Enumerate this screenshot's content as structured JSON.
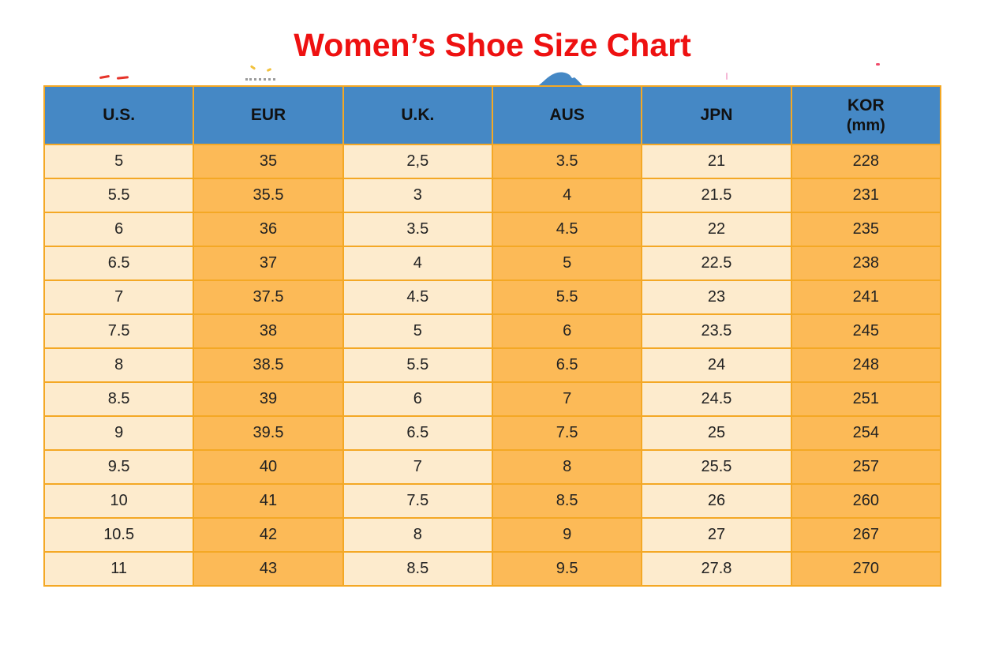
{
  "title": {
    "text": "Women’s Shoe Size Chart"
  },
  "colors": {
    "title_red": "#ee1111",
    "header_bg": "#4588c5",
    "border": "#f4a825",
    "col_light": "#fdebcd",
    "col_orange": "#fcba57",
    "cell_text": "#222222",
    "header_text": "#111111"
  },
  "chart_data": {
    "type": "table",
    "title": "Women’s Shoe Size Chart",
    "columns": [
      {
        "label": "U.S.",
        "sublabel": ""
      },
      {
        "label": "EUR",
        "sublabel": ""
      },
      {
        "label": "U.K.",
        "sublabel": ""
      },
      {
        "label": "AUS",
        "sublabel": ""
      },
      {
        "label": "JPN",
        "sublabel": ""
      },
      {
        "label": "KOR",
        "sublabel": "(mm)"
      }
    ],
    "rows": [
      [
        "5",
        "35",
        "2,5",
        "3.5",
        "21",
        "228"
      ],
      [
        "5.5",
        "35.5",
        "3",
        "4",
        "21.5",
        "231"
      ],
      [
        "6",
        "36",
        "3.5",
        "4.5",
        "22",
        "235"
      ],
      [
        "6.5",
        "37",
        "4",
        "5",
        "22.5",
        "238"
      ],
      [
        "7",
        "37.5",
        "4.5",
        "5.5",
        "23",
        "241"
      ],
      [
        "7.5",
        "38",
        "5",
        "6",
        "23.5",
        "245"
      ],
      [
        "8",
        "38.5",
        "5.5",
        "6.5",
        "24",
        "248"
      ],
      [
        "8.5",
        "39",
        "6",
        "7",
        "24.5",
        "251"
      ],
      [
        "9",
        "39.5",
        "6.5",
        "7.5",
        "25",
        "254"
      ],
      [
        "9.5",
        "40",
        "7",
        "8",
        "25.5",
        "257"
      ],
      [
        "10",
        "41",
        "7.5",
        "8.5",
        "26",
        "260"
      ],
      [
        "10.5",
        "42",
        "8",
        "9",
        "27",
        "267"
      ],
      [
        "11",
        "43",
        "8.5",
        "9.5",
        "27.8",
        "270"
      ]
    ]
  }
}
